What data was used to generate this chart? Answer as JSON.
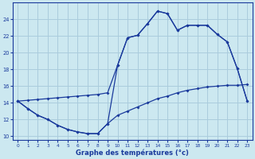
{
  "background_color": "#cce8f0",
  "grid_color": "#aaccdd",
  "line_color": "#1a3a9c",
  "xlabel": "Graphe des températures (°c)",
  "xlim": [
    -0.5,
    23.5
  ],
  "ylim": [
    9.5,
    26.0
  ],
  "yticks": [
    10,
    12,
    14,
    16,
    18,
    20,
    22,
    24
  ],
  "xticks": [
    0,
    1,
    2,
    3,
    4,
    5,
    6,
    7,
    8,
    9,
    10,
    11,
    12,
    13,
    14,
    15,
    16,
    17,
    18,
    19,
    20,
    21,
    22,
    23
  ],
  "line1_x": [
    0,
    1,
    2,
    3,
    4,
    5,
    6,
    7,
    8,
    9,
    10,
    11,
    12,
    13,
    14,
    15,
    16,
    17,
    18,
    19,
    20,
    21,
    22,
    23
  ],
  "line1_y": [
    14.2,
    13.3,
    12.5,
    12.0,
    11.3,
    10.8,
    10.5,
    10.3,
    10.3,
    11.5,
    12.5,
    13.0,
    13.5,
    14.0,
    14.5,
    14.8,
    15.2,
    15.5,
    15.7,
    15.9,
    16.0,
    16.1,
    16.1,
    16.2
  ],
  "line2_x": [
    0,
    1,
    2,
    3,
    4,
    5,
    6,
    7,
    8,
    9,
    10,
    11,
    12,
    13,
    14,
    15,
    16,
    17,
    18,
    19,
    20,
    21,
    22,
    23
  ],
  "line2_y": [
    14.2,
    13.3,
    12.5,
    12.0,
    11.3,
    10.8,
    10.5,
    10.3,
    10.3,
    11.5,
    18.5,
    21.8,
    22.1,
    23.5,
    25.0,
    24.7,
    22.7,
    23.3,
    23.3,
    23.3,
    22.2,
    21.3,
    18.1,
    14.2
  ],
  "line3_x": [
    0,
    1,
    2,
    3,
    4,
    5,
    6,
    7,
    8,
    9,
    10,
    11,
    12,
    13,
    14,
    15,
    16,
    17,
    18,
    19,
    20,
    21,
    22,
    23
  ],
  "line3_y": [
    14.2,
    14.3,
    14.4,
    14.5,
    14.6,
    14.7,
    14.8,
    14.9,
    15.0,
    15.2,
    18.5,
    21.8,
    22.1,
    23.5,
    25.0,
    24.7,
    22.7,
    23.3,
    23.3,
    23.3,
    22.2,
    21.3,
    18.1,
    14.2
  ]
}
